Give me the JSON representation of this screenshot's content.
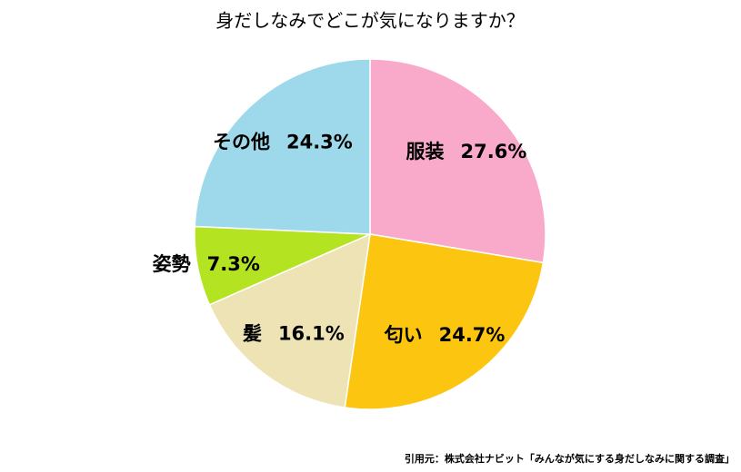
{
  "chart_data": {
    "type": "pie",
    "title": "身だしなみでどこが気になりますか？",
    "categories": [
      "服装",
      "匂い",
      "髪",
      "姿勢",
      "その他"
    ],
    "values": [
      27.6,
      24.7,
      16.1,
      7.3,
      24.3
    ],
    "value_labels": [
      "27.6%",
      "24.7%",
      "16.1%",
      "7.3%",
      "24.3%"
    ],
    "colors": [
      "#f9aacb",
      "#fcc510",
      "#eee3b5",
      "#b4e322",
      "#9dd9ea"
    ],
    "source": "引用元：株式会社ナビット「みんなが気にする身だしなみに関する調査」"
  }
}
